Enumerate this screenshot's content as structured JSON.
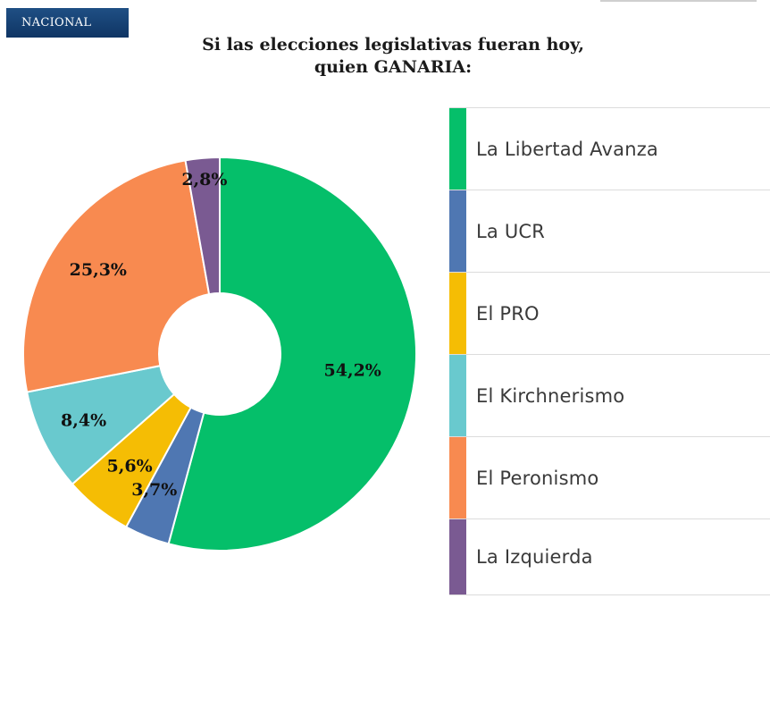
{
  "badge": "NACIONAL",
  "title_line1": "Si las elecciones legislativas fueran hoy,",
  "title_line2": "quien GANARIA:",
  "chart_data": {
    "type": "pie",
    "title": "Si las elecciones legislativas fueran hoy, quien GANARIA:",
    "donut": true,
    "legend_position": "right",
    "categories": [
      "La Libertad Avanza",
      "La UCR",
      "El PRO",
      "El Kirchnerismo",
      "El Peronismo",
      "La Izquierda"
    ],
    "values": [
      54.2,
      3.7,
      5.6,
      8.4,
      25.3,
      2.8
    ],
    "labels": [
      "54,2%",
      "3,7%",
      "5,6%",
      "8,4%",
      "25,3%",
      "2,8%"
    ],
    "colors": [
      "#05bf6a",
      "#4f77b2",
      "#f5bd04",
      "#69c9ce",
      "#f88a50",
      "#7a5a92"
    ]
  }
}
